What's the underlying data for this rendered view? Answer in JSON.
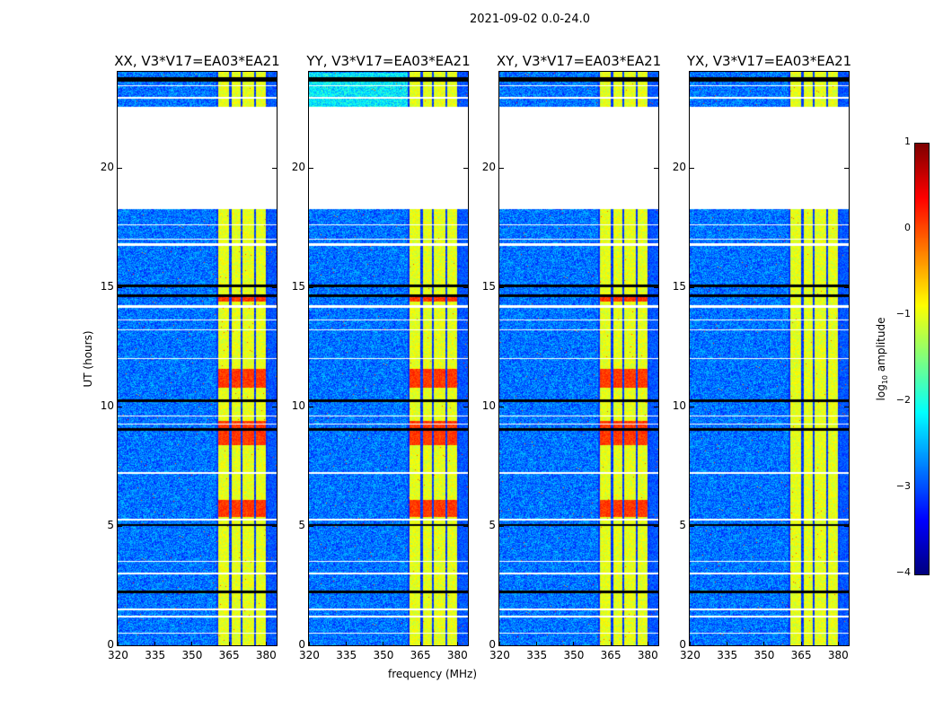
{
  "chart_data": {
    "type": "heatmap",
    "title": "2021-09-02 0.0-24.0",
    "xlabel": "frequency (MHz)",
    "ylabel": "UT (hours)",
    "xlim": [
      320,
      384
    ],
    "ylim": [
      0,
      24
    ],
    "xticks": [
      "320",
      "335",
      "350",
      "365",
      "380"
    ],
    "xtick_values": [
      320,
      335,
      350,
      365,
      380
    ],
    "yticks": [
      "0",
      "5",
      "10",
      "15",
      "20"
    ],
    "ytick_values": [
      0,
      5,
      10,
      15,
      20
    ],
    "colorbar": {
      "label_prefix": "log",
      "label_sub": "10",
      "label_suffix": " amplitude",
      "range": [
        -4,
        1
      ],
      "ticks": [
        "1",
        "0",
        "−1",
        "−2",
        "−3",
        "−4"
      ],
      "tick_values": [
        1,
        0,
        -1,
        -2,
        -3,
        -4
      ],
      "colormap": "jet"
    },
    "panels": [
      {
        "title": "XX, V3*V17=EA03*EA21"
      },
      {
        "title": "YY, V3*V17=EA03*EA21"
      },
      {
        "title": "XY, V3*V17=EA03*EA21"
      },
      {
        "title": "YX, V3*V17=EA03*EA21"
      }
    ],
    "background_level": -2.8,
    "band_level": -1.0,
    "bright_bands_mhz": [
      [
        360.7,
        365
      ],
      [
        366,
        369.5
      ],
      [
        370.5,
        375
      ],
      [
        376,
        380
      ]
    ],
    "no_data_hours": [
      [
        18.27,
        22.55
      ],
      [
        16.75,
        16.85
      ],
      [
        14.15,
        14.25
      ],
      [
        13.6,
        13.65
      ],
      [
        13.2,
        13.25
      ],
      [
        12.0,
        12.05
      ],
      [
        9.6,
        9.65
      ],
      [
        9.25,
        9.3
      ],
      [
        7.2,
        7.25
      ],
      [
        5.25,
        5.3
      ],
      [
        3.5,
        3.55
      ],
      [
        3.0,
        3.05
      ],
      [
        1.5,
        1.55
      ],
      [
        1.2,
        1.25
      ],
      [
        0.5,
        0.55
      ],
      [
        23.4,
        23.45
      ],
      [
        22.9,
        22.95
      ],
      [
        17.0,
        17.05
      ],
      [
        17.6,
        17.65
      ]
    ],
    "flagged_hours": [
      [
        23.6,
        23.8
      ],
      [
        15.0,
        15.1
      ],
      [
        14.6,
        14.7
      ],
      [
        10.2,
        10.3
      ],
      [
        9.0,
        9.1
      ],
      [
        5.0,
        5.1
      ],
      [
        2.2,
        2.3
      ]
    ],
    "strong_hours": [
      [
        5.4,
        6.1
      ],
      [
        8.4,
        9.4
      ],
      [
        14.4,
        14.7
      ],
      [
        10.8,
        11.6
      ]
    ]
  }
}
